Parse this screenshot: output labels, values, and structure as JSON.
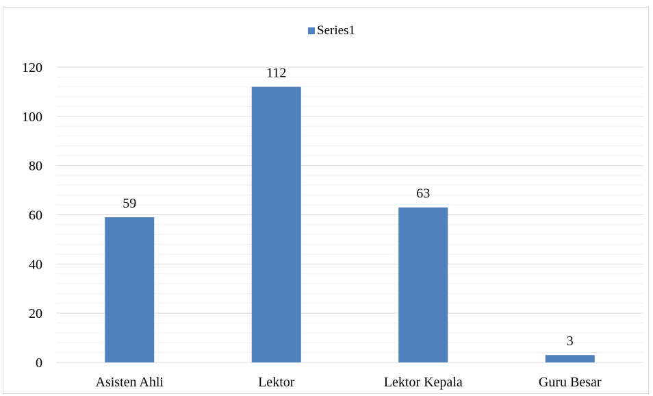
{
  "chart_data": {
    "type": "bar",
    "categories": [
      "Asisten Ahli",
      "Lektor",
      "Lektor Kepala",
      "Guru Besar"
    ],
    "series": [
      {
        "name": "Series1",
        "values": [
          59,
          112,
          63,
          3
        ]
      }
    ],
    "ylim": [
      0,
      120
    ],
    "yticks": [
      0,
      20,
      40,
      60,
      80,
      100,
      120
    ],
    "minor_gridlines": true,
    "data_labels": [
      "59",
      "112",
      "63",
      "3"
    ],
    "legend_position": "top",
    "grid": true,
    "colors": {
      "bar": "#4f81bd",
      "gridline": "#d9d9d9",
      "minor_gridline": "#efefef"
    }
  }
}
